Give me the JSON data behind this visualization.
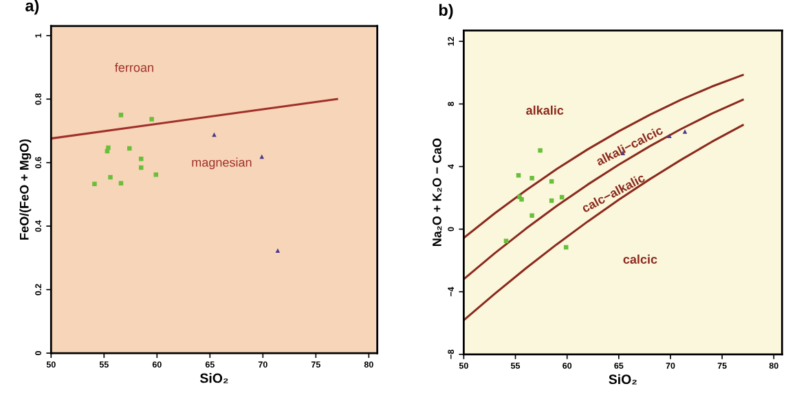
{
  "chart_data": [
    {
      "type": "scatter",
      "title": "a)",
      "xlabel": "SiO₂",
      "ylabel": "FeO/(FeO + MgO)",
      "xlim": [
        50,
        80.8
      ],
      "ylim": [
        0,
        1.03
      ],
      "xticks": [
        50,
        55,
        60,
        65,
        70,
        75,
        80
      ],
      "yticks": [
        0,
        0.2,
        0.4,
        0.6,
        0.8,
        1
      ],
      "grid": false,
      "legend": false,
      "series": [
        {
          "type": "line",
          "color": "#a0302a",
          "x": [
            50,
            77
          ],
          "values": [
            0.676,
            0.8
          ],
          "marker": "none",
          "line_style": "solid"
        },
        {
          "color": "#6abf3a",
          "marker": "square",
          "x": [
            56.6,
            59.5,
            55.4,
            55.3,
            57.4,
            58.5,
            58.5,
            59.9,
            55.6,
            56.6,
            54.1
          ],
          "values": [
            0.75,
            0.737,
            0.647,
            0.636,
            0.645,
            0.612,
            0.584,
            0.562,
            0.554,
            0.535,
            0.533
          ]
        },
        {
          "color": "#4b3a8c",
          "marker": "triangle",
          "x": [
            65.4,
            69.9,
            71.4
          ],
          "values": [
            0.688,
            0.619,
            0.323
          ]
        }
      ],
      "annotations": [
        "ferroan",
        "magnesian"
      ]
    },
    {
      "type": "scatter",
      "title": "b)",
      "xlabel": "SiO₂",
      "ylabel": "Na₂O + K₂O − CaO",
      "xlim": [
        50,
        80.8
      ],
      "ylim": [
        -8,
        12.7
      ],
      "xticks": [
        50,
        55,
        60,
        65,
        70,
        75,
        80
      ],
      "yticks": [
        {
          "value": -8,
          "label": "−8"
        },
        {
          "value": -4,
          "label": "−4"
        },
        0,
        4,
        8,
        12
      ],
      "grid": false,
      "legend": false,
      "series": [
        {
          "type": "line",
          "color": "#8b2a1e",
          "marker": "none",
          "line_style": "solid",
          "x": [
            50,
            53,
            56,
            59,
            62,
            65,
            68,
            71,
            74,
            77
          ],
          "values": [
            -0.56,
            1.01,
            2.47,
            3.84,
            5.1,
            6.25,
            7.31,
            8.26,
            9.11,
            9.85
          ]
        },
        {
          "type": "line",
          "color": "#8b2a1e",
          "marker": "none",
          "line_style": "solid",
          "x": [
            50,
            53,
            56,
            59,
            62,
            65,
            68,
            71,
            74,
            77
          ],
          "values": [
            -3.2,
            -1.54,
            0.02,
            1.48,
            2.85,
            4.12,
            5.3,
            6.39,
            7.38,
            8.27
          ]
        },
        {
          "type": "line",
          "color": "#8b2a1e",
          "marker": "none",
          "line_style": "solid",
          "x": [
            50,
            53,
            56,
            59,
            62,
            65,
            68,
            71,
            74,
            77
          ],
          "values": [
            -5.82,
            -4.13,
            -2.51,
            -0.97,
            0.49,
            1.88,
            3.19,
            4.42,
            5.58,
            6.65
          ]
        },
        {
          "color": "#6abf3a",
          "marker": "square",
          "x": [
            57.4,
            55.3,
            56.6,
            58.5,
            55.4,
            55.6,
            58.5,
            59.5,
            56.6,
            54.1,
            59.9
          ],
          "values": [
            5.03,
            3.44,
            3.26,
            3.05,
            2.06,
            1.9,
            1.82,
            2.04,
            0.87,
            -0.76,
            -1.16
          ]
        },
        {
          "color": "#4b3a8c",
          "marker": "triangle",
          "x": [
            65.4,
            69.9,
            71.4
          ],
          "values": [
            4.87,
            5.96,
            6.24
          ]
        }
      ],
      "annotations": [
        "alkalic",
        "alkali−calcic",
        "calc−alkalic",
        "calcic"
      ]
    }
  ]
}
